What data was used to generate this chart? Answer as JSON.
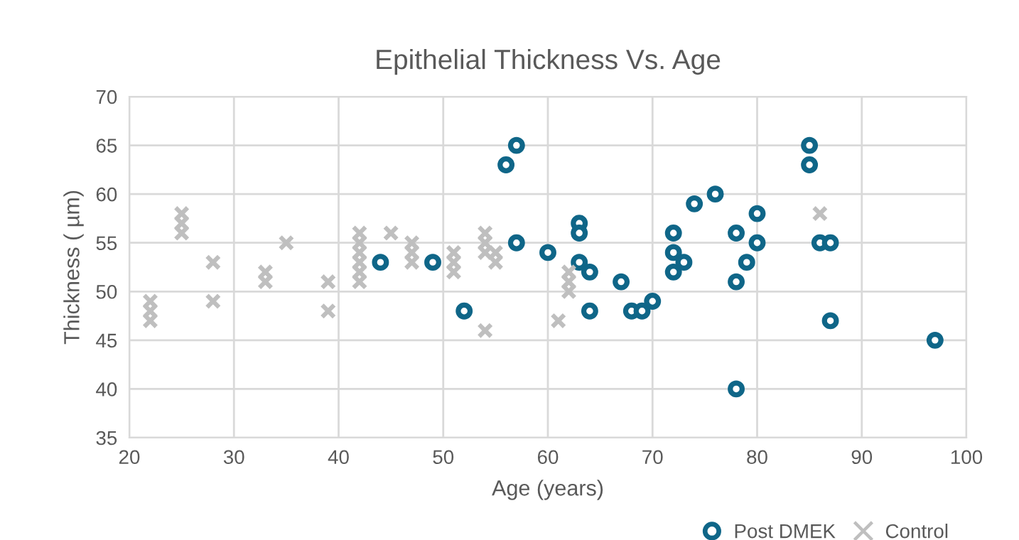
{
  "chart_data": {
    "type": "scatter",
    "title": "Epithelial Thickness Vs. Age",
    "xlabel": "Age (years)",
    "ylabel": "Thickness ( µm)",
    "xlim": [
      20,
      100
    ],
    "xticks": [
      20,
      30,
      40,
      50,
      60,
      70,
      80,
      90,
      100
    ],
    "ylim": [
      35,
      70
    ],
    "yticks": [
      35,
      40,
      45,
      50,
      55,
      60,
      65,
      70
    ],
    "grid": true,
    "legend": "bottom right",
    "series": [
      {
        "name": "Post DMEK",
        "color": "#0f6688",
        "marker": "circle",
        "x": [
          44,
          49,
          52,
          56,
          57,
          57,
          60,
          63,
          63,
          63,
          64,
          64,
          67,
          68,
          69,
          70,
          72,
          72,
          72,
          73,
          74,
          76,
          78,
          78,
          78,
          79,
          80,
          80,
          85,
          85,
          86,
          87,
          87,
          97
        ],
        "values": [
          53,
          53,
          48,
          63,
          65,
          55,
          54,
          57,
          56,
          53,
          52,
          48,
          51,
          48,
          48,
          49,
          56,
          54,
          52,
          53,
          59,
          60,
          56,
          51,
          40,
          53,
          58,
          55,
          65,
          63,
          55,
          55,
          47,
          45
        ]
      },
      {
        "name": "Control",
        "color": "#bfbfbf",
        "marker": "cross",
        "x": [
          22,
          22,
          22,
          25,
          25,
          25,
          28,
          28,
          33,
          33,
          35,
          39,
          39,
          42,
          42,
          42,
          42,
          42,
          42,
          45,
          47,
          47,
          47,
          51,
          51,
          51,
          54,
          54,
          54,
          55,
          55,
          54,
          61,
          62,
          62,
          62,
          86
        ],
        "values": [
          49,
          48,
          47,
          58,
          57,
          56,
          53,
          49,
          52,
          51,
          55,
          51,
          48,
          56,
          55,
          54,
          53,
          52,
          51,
          56,
          55,
          54,
          53,
          54,
          53,
          52,
          56,
          55,
          54,
          54,
          53,
          46,
          47,
          52,
          51,
          50,
          58
        ]
      }
    ]
  }
}
